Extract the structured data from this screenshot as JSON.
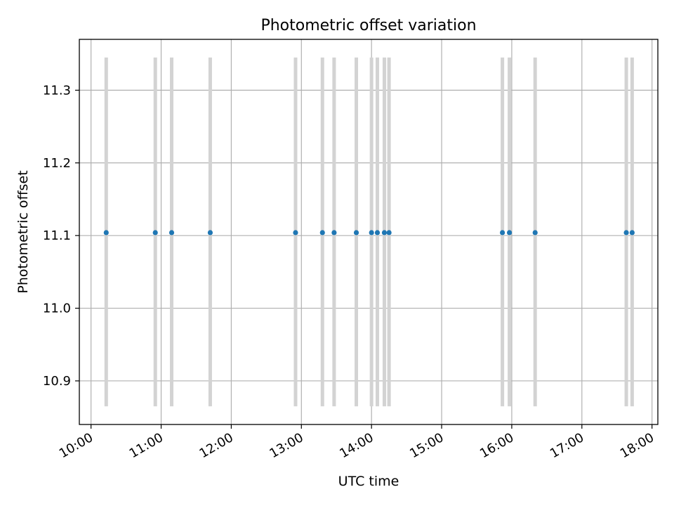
{
  "chart_data": {
    "type": "scatter",
    "title": "Photometric offset variation",
    "xlabel": "UTC time",
    "ylabel": "Photometric offset",
    "grid": true,
    "xlim": [
      "09:50",
      "18:05"
    ],
    "ylim": [
      10.84,
      11.37
    ],
    "xticks": [
      "10:00",
      "11:00",
      "12:00",
      "13:00",
      "14:00",
      "15:00",
      "16:00",
      "17:00",
      "18:00"
    ],
    "yticks": [
      "10.9",
      "11.0",
      "11.1",
      "11.2",
      "11.3"
    ],
    "error_range": [
      10.865,
      11.345
    ],
    "points": [
      {
        "x": "10:13",
        "y": 11.104
      },
      {
        "x": "10:55",
        "y": 11.104
      },
      {
        "x": "11:09",
        "y": 11.104
      },
      {
        "x": "11:42",
        "y": 11.104
      },
      {
        "x": "12:55",
        "y": 11.104
      },
      {
        "x": "13:18",
        "y": 11.104
      },
      {
        "x": "13:28",
        "y": 11.104
      },
      {
        "x": "13:47",
        "y": 11.104
      },
      {
        "x": "14:00",
        "y": 11.104
      },
      {
        "x": "14:05",
        "y": 11.104
      },
      {
        "x": "14:11",
        "y": 11.104
      },
      {
        "x": "14:15",
        "y": 11.104
      },
      {
        "x": "15:52",
        "y": 11.104
      },
      {
        "x": "15:58",
        "y": 11.104
      },
      {
        "x": "16:20",
        "y": 11.104
      },
      {
        "x": "17:38",
        "y": 11.104
      },
      {
        "x": "17:43",
        "y": 11.104
      }
    ],
    "colors": {
      "point": "#1f77b4",
      "errorbar": "#d3d3d3",
      "grid": "#b0b0b0",
      "axes": "#000000"
    }
  }
}
